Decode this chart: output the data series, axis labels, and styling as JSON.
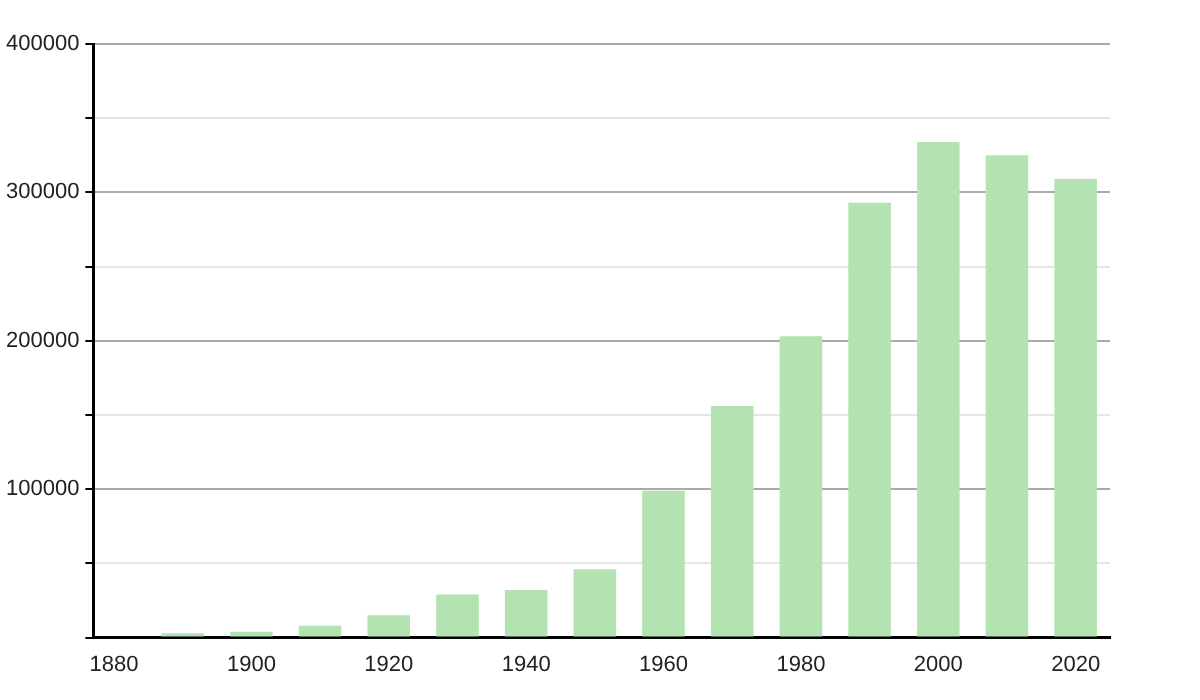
{
  "chart_data": {
    "type": "bar",
    "x": [
      1890,
      1900,
      1910,
      1920,
      1930,
      1940,
      1950,
      1960,
      1970,
      1980,
      1990,
      2000,
      2010,
      2020
    ],
    "values": [
      3000,
      4000,
      8000,
      15000,
      29000,
      32000,
      46000,
      99000,
      156000,
      203000,
      293000,
      334000,
      325000,
      309000
    ],
    "color": "#b3e3b0",
    "xlim": [
      1877,
      2025
    ],
    "xticks": [
      1880,
      1900,
      1920,
      1940,
      1960,
      1980,
      2000,
      2020
    ],
    "ylim": [
      0,
      400000
    ],
    "yticks": [
      {
        "value": 0,
        "label": null
      },
      {
        "value": 50000,
        "label": null
      },
      100000,
      {
        "value": 150000,
        "label": null
      },
      200000,
      {
        "value": 250000,
        "label": null
      },
      300000,
      {
        "value": 350000,
        "label": null
      },
      400000
    ],
    "grid": "y",
    "legend": false
  }
}
